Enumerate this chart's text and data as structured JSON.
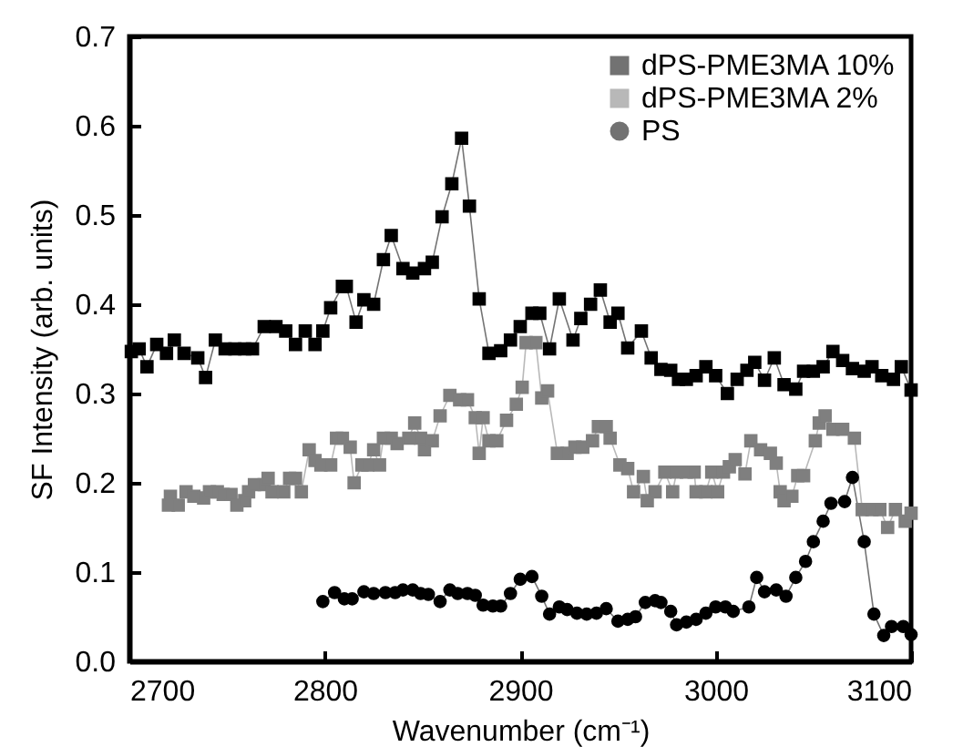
{
  "chart_data": {
    "type": "line",
    "xlabel": "Wavenumber (cm⁻¹)",
    "ylabel": "SF Intensity (arb. units)",
    "xlim": [
      2700,
      3100
    ],
    "xticks": [
      2700,
      2800,
      2900,
      3000,
      3100
    ],
    "ylim": [
      0,
      0.7
    ],
    "yticks": [
      {
        "value": 0,
        "label": "0.0"
      },
      {
        "value": 0.1,
        "label": "0.1"
      },
      {
        "value": 0.2,
        "label": "0.2"
      },
      {
        "value": 0.3,
        "label": "0.3"
      },
      {
        "value": 0.4,
        "label": "0.4"
      },
      {
        "value": 0.5,
        "label": "0.5"
      },
      {
        "value": 0.6,
        "label": "0.6"
      },
      {
        "value": 0.7,
        "label": "0.7"
      }
    ],
    "legend": "top right",
    "grid": false,
    "line_style": "solid",
    "series": [
      {
        "name": "dPS-PME3MA 10%",
        "color": "#000000",
        "marker": "square",
        "x": [
          2701,
          2705,
          2709,
          2714,
          2719,
          2723,
          2728,
          2735,
          2739,
          2744,
          2749,
          2754,
          2759,
          2763,
          2769,
          2775,
          2780,
          2785,
          2790,
          2795,
          2799,
          2803,
          2809,
          2811,
          2816,
          2820,
          2825,
          2830,
          2834,
          2840,
          2845,
          2851,
          2855,
          2860,
          2865,
          2870,
          2874,
          2879,
          2884,
          2890,
          2895,
          2900,
          2906,
          2910,
          2915,
          2920,
          2927,
          2931,
          2936,
          2941,
          2946,
          2950,
          2955,
          2962,
          2967,
          2972,
          2977,
          2981,
          2985,
          2990,
          2995,
          3000,
          3006,
          3011,
          3016,
          3020,
          3025,
          3030,
          3035,
          3041,
          3045,
          3050,
          3055,
          3060,
          3065,
          3070,
          3076,
          3080,
          3085,
          3091,
          3095,
          3100
        ],
        "values": [
          0.347,
          0.35,
          0.33,
          0.355,
          0.345,
          0.36,
          0.345,
          0.34,
          0.318,
          0.36,
          0.35,
          0.35,
          0.35,
          0.35,
          0.375,
          0.375,
          0.37,
          0.355,
          0.37,
          0.355,
          0.37,
          0.396,
          0.42,
          0.42,
          0.38,
          0.405,
          0.4,
          0.45,
          0.477,
          0.44,
          0.435,
          0.44,
          0.447,
          0.498,
          0.535,
          0.586,
          0.51,
          0.406,
          0.345,
          0.348,
          0.36,
          0.375,
          0.39,
          0.39,
          0.35,
          0.406,
          0.36,
          0.384,
          0.4,
          0.416,
          0.38,
          0.39,
          0.351,
          0.37,
          0.34,
          0.327,
          0.326,
          0.316,
          0.316,
          0.32,
          0.33,
          0.32,
          0.3,
          0.316,
          0.326,
          0.335,
          0.315,
          0.34,
          0.31,
          0.305,
          0.325,
          0.325,
          0.33,
          0.347,
          0.337,
          0.328,
          0.325,
          0.33,
          0.32,
          0.316,
          0.33,
          0.304
        ]
      },
      {
        "name": "dPS-PME3MA 2%",
        "color": "#7f7f7f",
        "marker": "square",
        "x": [
          2720,
          2721,
          2725,
          2729,
          2733,
          2738,
          2741,
          2745,
          2748,
          2752,
          2755,
          2759,
          2761,
          2764,
          2769,
          2771,
          2773,
          2779,
          2782,
          2785,
          2788,
          2792,
          2795,
          2798,
          2803,
          2806,
          2809,
          2813,
          2815,
          2819,
          2822,
          2825,
          2828,
          2830,
          2834,
          2837,
          2843,
          2846,
          2849,
          2851,
          2855,
          2859,
          2864,
          2869,
          2873,
          2877,
          2879,
          2881,
          2884,
          2888,
          2893,
          2898,
          2901,
          2903,
          2908,
          2911,
          2914,
          2919,
          2924,
          2928,
          2932,
          2937,
          2940,
          2944,
          2946,
          2951,
          2955,
          2958,
          2963,
          2965,
          2969,
          2974,
          2978,
          2980,
          2985,
          2989,
          2990,
          2995,
          2998,
          3001,
          3004,
          3007,
          3010,
          3015,
          3018,
          3023,
          3028,
          3031,
          3033,
          3035,
          3039,
          3042,
          3045,
          3051,
          3053,
          3056,
          3060,
          3065,
          3071,
          3075,
          3080,
          3084,
          3088,
          3092,
          3097,
          3100
        ],
        "values": [
          0.175,
          0.185,
          0.175,
          0.19,
          0.185,
          0.183,
          0.19,
          0.19,
          0.187,
          0.187,
          0.175,
          0.18,
          0.19,
          0.198,
          0.198,
          0.205,
          0.19,
          0.19,
          0.205,
          0.205,
          0.19,
          0.237,
          0.225,
          0.22,
          0.22,
          0.25,
          0.25,
          0.24,
          0.2,
          0.22,
          0.22,
          0.237,
          0.22,
          0.25,
          0.25,
          0.244,
          0.25,
          0.267,
          0.25,
          0.237,
          0.247,
          0.275,
          0.298,
          0.293,
          0.293,
          0.273,
          0.233,
          0.273,
          0.247,
          0.247,
          0.27,
          0.288,
          0.307,
          0.357,
          0.357,
          0.295,
          0.303,
          0.233,
          0.233,
          0.24,
          0.24,
          0.247,
          0.263,
          0.263,
          0.25,
          0.22,
          0.216,
          0.19,
          0.207,
          0.18,
          0.19,
          0.212,
          0.19,
          0.212,
          0.212,
          0.212,
          0.19,
          0.19,
          0.212,
          0.19,
          0.212,
          0.218,
          0.226,
          0.21,
          0.247,
          0.237,
          0.233,
          0.222,
          0.19,
          0.18,
          0.185,
          0.208,
          0.208,
          0.247,
          0.267,
          0.275,
          0.26,
          0.26,
          0.25,
          0.17,
          0.17,
          0.17,
          0.15,
          0.17,
          0.157,
          0.166
        ]
      },
      {
        "name": "PS",
        "color": "#000000",
        "marker": "circle",
        "x": [
          2799,
          2805,
          2810,
          2814,
          2820,
          2825,
          2831,
          2836,
          2840,
          2845,
          2849,
          2853,
          2859,
          2864,
          2868,
          2873,
          2877,
          2881,
          2886,
          2890,
          2895,
          2900,
          2906,
          2911,
          2915,
          2920,
          2924,
          2929,
          2934,
          2939,
          2944,
          2950,
          2955,
          2959,
          2964,
          2969,
          2972,
          2977,
          2980,
          2985,
          2990,
          2995,
          3000,
          3005,
          3009,
          3017,
          3021,
          3025,
          3031,
          3036,
          3041,
          3046,
          3050,
          3055,
          3059,
          3066,
          3070,
          3076,
          3081,
          3086,
          3090,
          3096,
          3100
        ],
        "values": [
          0.067,
          0.077,
          0.07,
          0.07,
          0.078,
          0.076,
          0.077,
          0.077,
          0.08,
          0.08,
          0.076,
          0.075,
          0.067,
          0.08,
          0.076,
          0.076,
          0.074,
          0.063,
          0.062,
          0.062,
          0.076,
          0.092,
          0.095,
          0.073,
          0.053,
          0.061,
          0.058,
          0.054,
          0.053,
          0.054,
          0.059,
          0.045,
          0.047,
          0.05,
          0.066,
          0.068,
          0.066,
          0.056,
          0.041,
          0.044,
          0.047,
          0.054,
          0.061,
          0.061,
          0.056,
          0.061,
          0.094,
          0.078,
          0.08,
          0.073,
          0.094,
          0.112,
          0.134,
          0.157,
          0.177,
          0.179,
          0.206,
          0.134,
          0.053,
          0.029,
          0.039,
          0.039,
          0.03
        ]
      }
    ]
  }
}
